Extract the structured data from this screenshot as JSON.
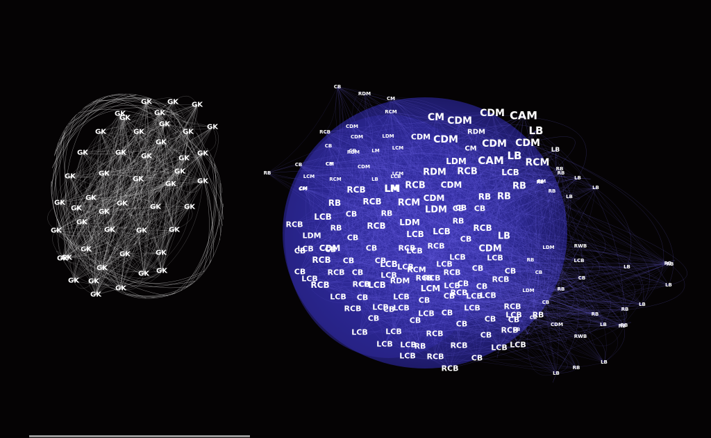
{
  "colors": {
    "background": "#050304",
    "gk_cluster_edges": "#e8e8e8",
    "outfield_cluster_fill": "#2f2a9c",
    "outfield_cluster_edges": "#6f66e6",
    "node_label": "#ffffff"
  },
  "clusters": [
    {
      "name": "goalkeepers",
      "label_size": 10,
      "labels": [
        "GK",
        "GK",
        "GK",
        "GK",
        "GK",
        "GK",
        "GK",
        "GK",
        "GK",
        "GK",
        "GK",
        "GK",
        "GK",
        "GK",
        "GK",
        "GK",
        "GK",
        "GK",
        "GK",
        "GK",
        "GK",
        "GK",
        "GK",
        "GK",
        "GK",
        "GK",
        "GK",
        "GK",
        "GK",
        "GK",
        "GK",
        "GK",
        "GK",
        "GK",
        "GK",
        "GK",
        "GK",
        "GK",
        "GK",
        "GK",
        "GK",
        "GK",
        "GK",
        "GK",
        "GK",
        "GK",
        "GK"
      ]
    },
    {
      "name": "outfield",
      "label_size": 12,
      "labels": [
        "CAM",
        "LB",
        "CDM",
        "CM",
        "CDM",
        "CDM",
        "LB",
        "CAM",
        "RCM",
        "LB",
        "CDM",
        "CM",
        "RDM",
        "LDM",
        "CDM",
        "CDM",
        "RCB",
        "LCB",
        "RB",
        "LM",
        "RCB",
        "RCB",
        "RDM",
        "CDM",
        "CB",
        "LM",
        "RCM",
        "RB",
        "RB",
        "RB",
        "RB",
        "LCB",
        "CB",
        "RCB",
        "RB",
        "RCB",
        "LDM",
        "CB",
        "RCB",
        "CB",
        "CDM",
        "LDM",
        "RB",
        "LCB",
        "CDM",
        "LB",
        "LCB",
        "CB",
        "CDM",
        "CB",
        "RCB",
        "CB",
        "RCB",
        "RCB",
        "LCB",
        "CB",
        "LCB",
        "CB",
        "CB",
        "LCB",
        "RCB",
        "RCB",
        "CB",
        "CB",
        "CB",
        "RCB",
        "RCB",
        "LCM",
        "LCB",
        "CB",
        "LCB",
        "CB",
        "CB",
        "LCB",
        "LCB",
        "CB",
        "LCB",
        "LCB",
        "RCB",
        "CB",
        "CB",
        "CB",
        "LCB",
        "CB",
        "RCB",
        "RCB",
        "LCB",
        "CB",
        "LCB",
        "LCB",
        "RCB",
        "CB",
        "RCB",
        "LCB",
        "RCB",
        "CB",
        "LCB",
        "RCB",
        "LCB",
        "CB",
        "CB",
        "RCB",
        "LDM",
        "RCB",
        "RCM",
        "RDM",
        "CB",
        "LCB",
        "RCB",
        "LCB",
        "LCB",
        "LCB",
        "RCB",
        "LCB",
        "LCB",
        "LCB",
        "CB",
        "LCB",
        "RCB",
        "CB",
        "LCB",
        "LCB",
        "RB",
        "CB",
        "RB",
        "LCB"
      ]
    },
    {
      "name": "outfield-periphery",
      "label_size": 7,
      "labels": [
        "CB",
        "RDM",
        "CM",
        "RCM",
        "CDM",
        "CDM",
        "RCB",
        "CB",
        "LDM",
        "CB",
        "RDM",
        "LM",
        "LCM",
        "CB",
        "RB",
        "CB",
        "LCM",
        "CM",
        "CDM",
        "LB",
        "LCM",
        "RCM",
        "CM",
        "LCB",
        "CM",
        "RB",
        "RM",
        "RB",
        "LB",
        "RB",
        "LB",
        "LDM",
        "RWB",
        "RB",
        "LB",
        "RB",
        "CB",
        "LCB",
        "CB",
        "LDM",
        "RB",
        "CB",
        "RB",
        "LB",
        "CDM",
        "CB",
        "LB",
        "RB",
        "LB",
        "RB",
        "CB",
        "RWB",
        "RB",
        "LB",
        "RB",
        "LB",
        "RB",
        "LB",
        "RB"
      ]
    }
  ]
}
